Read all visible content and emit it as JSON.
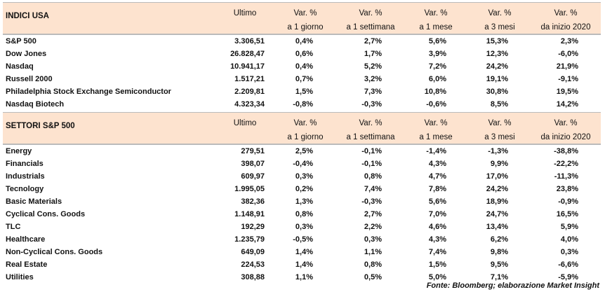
{
  "sections": [
    {
      "header": {
        "title": "INDICI USA",
        "columns": [
          {
            "top": "Ultimo"
          },
          {
            "top": "Var. %",
            "bottom": "a 1 giorno"
          },
          {
            "top": "Var. %",
            "bottom": "a 1 settimana"
          },
          {
            "top": "Var. %",
            "bottom": "a 1 mese"
          },
          {
            "top": "Var. %",
            "bottom": "a 3 mesi"
          },
          {
            "top": "Var. %",
            "bottom": "da inizio 2020"
          }
        ]
      },
      "rows": [
        [
          "S&P 500",
          "3.306,51",
          "0,4%",
          "2,7%",
          "5,6%",
          "15,3%",
          "2,3%"
        ],
        [
          "Dow Jones",
          "26.828,47",
          "0,6%",
          "1,7%",
          "3,9%",
          "12,3%",
          "-6,0%"
        ],
        [
          "Nasdaq",
          "10.941,17",
          "0,4%",
          "5,2%",
          "7,2%",
          "24,2%",
          "21,9%"
        ],
        [
          "Russell 2000",
          "1.517,21",
          "0,7%",
          "3,2%",
          "6,0%",
          "19,1%",
          "-9,1%"
        ],
        [
          "Philadelphia Stock Exchange Semiconductor",
          "2.209,81",
          "1,5%",
          "7,3%",
          "10,8%",
          "30,8%",
          "19,5%"
        ],
        [
          "Nasdaq Biotech",
          "4.323,34",
          "-0,8%",
          "-0,3%",
          "-0,6%",
          "8,5%",
          "14,2%"
        ]
      ]
    },
    {
      "header": {
        "title": "SETTORI S&P 500",
        "columns": [
          {
            "top": "Ultimo"
          },
          {
            "top": "Var. %",
            "bottom": "a 1 giorno"
          },
          {
            "top": "Var. %",
            "bottom": "a 1 settimana"
          },
          {
            "top": "Var. %",
            "bottom": "a 1 mese"
          },
          {
            "top": "Var. %",
            "bottom": "a 3 mesi"
          },
          {
            "top": "Var. %",
            "bottom": "da inizio 2020"
          }
        ]
      },
      "rows": [
        [
          "Energy",
          "279,51",
          "2,5%",
          "-0,1%",
          "-1,4%",
          "-1,3%",
          "-38,8%"
        ],
        [
          "Financials",
          "398,07",
          "-0,4%",
          "-0,1%",
          "4,3%",
          "9,9%",
          "-22,2%"
        ],
        [
          "Industrials",
          "609,97",
          "0,3%",
          "0,8%",
          "4,7%",
          "17,0%",
          "-11,3%"
        ],
        [
          "Tecnology",
          "1.995,05",
          "0,2%",
          "7,4%",
          "7,8%",
          "24,2%",
          "23,8%"
        ],
        [
          "Basic Materials",
          "382,36",
          "1,3%",
          "-0,3%",
          "5,6%",
          "18,9%",
          "-0,9%"
        ],
        [
          "Cyclical Cons. Goods",
          "1.148,91",
          "0,8%",
          "2,7%",
          "7,0%",
          "24,7%",
          "16,5%"
        ],
        [
          "TLC",
          "192,29",
          "0,3%",
          "2,2%",
          "4,6%",
          "13,4%",
          "5,9%"
        ],
        [
          "Healthcare",
          "1.235,79",
          "-0,5%",
          "0,3%",
          "4,3%",
          "6,2%",
          "4,0%"
        ],
        [
          "Non-Cyclical Cons. Goods",
          "649,09",
          "1,4%",
          "1,1%",
          "7,4%",
          "9,8%",
          "0,3%"
        ],
        [
          "Real Estate",
          "224,53",
          "1,4%",
          "0,8%",
          "1,5%",
          "9,5%",
          "-6,6%"
        ],
        [
          "Utilities",
          "308,88",
          "1,1%",
          "0,5%",
          "5,0%",
          "7,1%",
          "-5,9%"
        ]
      ]
    }
  ],
  "footer": {
    "source": "Fonte: Bloomberg; elaborazione Market Insight"
  }
}
